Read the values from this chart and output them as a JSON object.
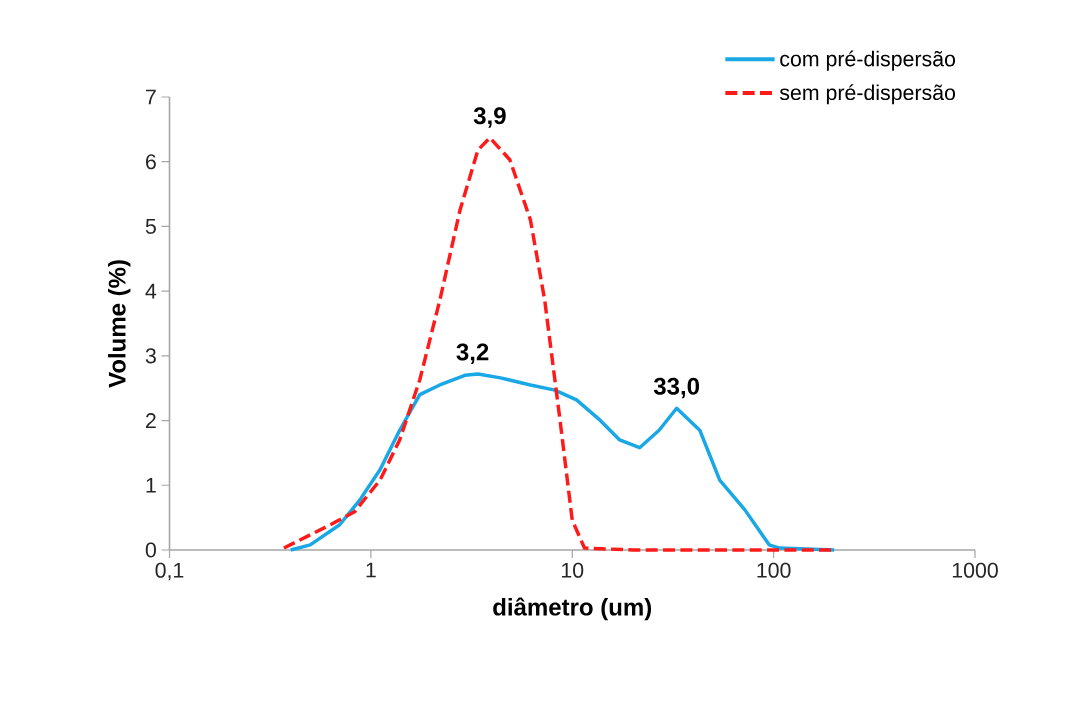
{
  "chart_data": {
    "type": "line",
    "xlabel": "diâmetro (um)",
    "ylabel": "Volume (%)",
    "log": "x",
    "xlim": [
      0.1,
      1000
    ],
    "ylim": [
      0,
      7
    ],
    "xticks": [
      {
        "value": 0.1,
        "label": "0,1"
      },
      1,
      10,
      100,
      1000
    ],
    "yticks": [
      0,
      1,
      2,
      3,
      4,
      5,
      6,
      7
    ],
    "grid": false,
    "legend": "top right",
    "annotations": [
      {
        "text": "3,9",
        "x": 3.9,
        "y": 6.37
      },
      {
        "text": "3,2",
        "x": 3.2,
        "y": 2.72
      },
      {
        "text": "33,0",
        "x": 33,
        "y": 2.19
      }
    ],
    "series": [
      {
        "name": "com pré-dispersão",
        "color": "#1aa7e6",
        "line_style": "solid",
        "x": [
          0.4,
          0.5,
          0.7,
          0.88,
          1.11,
          1.39,
          1.75,
          2.2,
          2.93,
          3.4,
          4.4,
          6.2,
          8.2,
          10.5,
          13.7,
          17.2,
          21.6,
          27,
          33,
          43,
          54,
          72,
          95,
          107,
          200
        ],
        "values": [
          0,
          0.08,
          0.39,
          0.77,
          1.24,
          1.85,
          2.4,
          2.55,
          2.7,
          2.72,
          2.66,
          2.55,
          2.47,
          2.32,
          2.01,
          1.7,
          1.58,
          1.85,
          2.19,
          1.85,
          1.08,
          0.62,
          0.08,
          0.03,
          0
        ]
      },
      {
        "name": "sem pré-dispersão",
        "color": "#ff1a1a",
        "line_style": "dashed",
        "x": [
          0.37,
          0.63,
          0.83,
          1.11,
          1.39,
          1.75,
          2.2,
          2.77,
          3.4,
          3.9,
          4.9,
          6.2,
          7.3,
          8.7,
          10,
          11.5,
          20,
          50,
          100,
          200
        ],
        "values": [
          0.03,
          0.39,
          0.59,
          1.08,
          1.7,
          2.63,
          3.86,
          5.25,
          6.18,
          6.37,
          6.03,
          5.1,
          3.86,
          2.0,
          0.46,
          0.03,
          0,
          0,
          0,
          0
        ]
      }
    ]
  }
}
